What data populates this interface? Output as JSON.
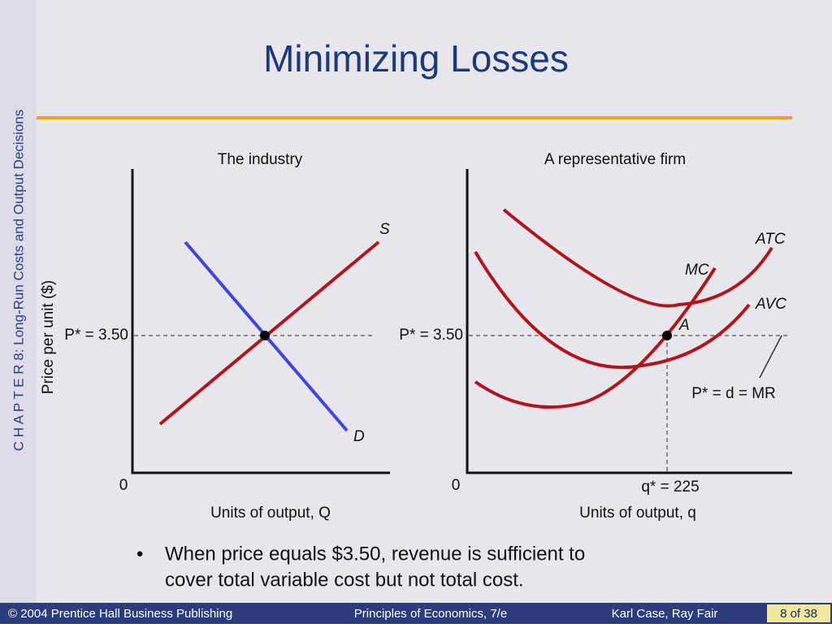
{
  "slide": {
    "title": "Minimizing Losses",
    "side_label": "C H A P T E R  8:  Long-Run Costs and Output Decisions"
  },
  "industry": {
    "title": "The industry",
    "y_axis_label": "Price per unit ($)",
    "price_label": "P* = 3.50",
    "origin": "0",
    "x_axis_label": "Units of output, Q",
    "supply_label": "S",
    "demand_label": "D"
  },
  "firm": {
    "title": "A representative firm",
    "price_label": "P* = 3.50",
    "origin": "0",
    "x_axis_label": "Units of output, q",
    "quantity_label": "q* = 225",
    "atc_label": "ATC",
    "mc_label": "MC",
    "avc_label": "AVC",
    "point_label": "A",
    "demand_label": "P* = d = MR"
  },
  "bullet": {
    "marker": "•",
    "lines": [
      "When price equals $3.50, revenue is sufficient to",
      "cover total variable cost but not total cost."
    ]
  },
  "footer": {
    "publisher": "© 2004 Prentice Hall Business Publishing",
    "book": "Principles of Economics, 7/e",
    "authors": "Karl Case, Ray Fair",
    "page": "8 of 38"
  }
}
